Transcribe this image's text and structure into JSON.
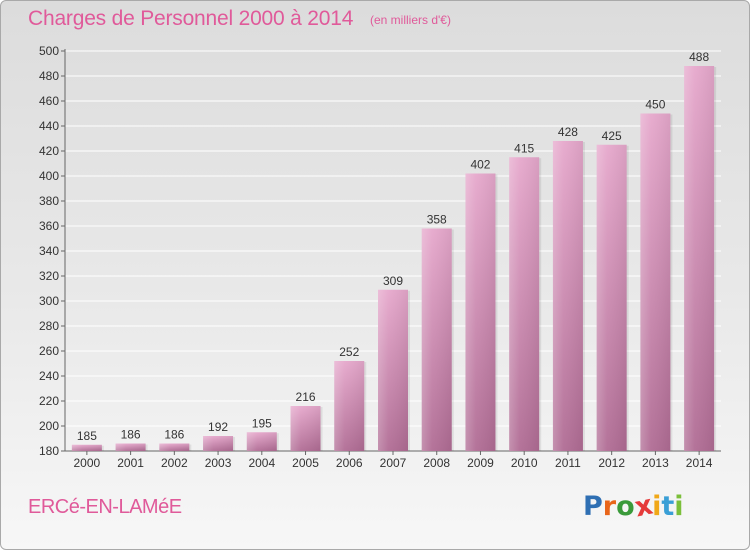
{
  "header": {
    "title": "Charges de Personnel 2000 à 2014",
    "subtitle": "(en milliers d'€)"
  },
  "footer": {
    "commune": "ERCé-EN-LAMéE",
    "logo": {
      "text": "Proxiti",
      "letter_colors": [
        "#2f6fb3",
        "#e8651a",
        "#3a9a3a",
        "#e53a3a",
        "#f0a818",
        "#3a9fd6",
        "#7bbf3a"
      ]
    }
  },
  "chart_data": {
    "type": "bar",
    "title": "Charges de Personnel 2000 à 2014",
    "subtitle": "(en milliers d'€)",
    "categories": [
      "2000",
      "2001",
      "2002",
      "2003",
      "2004",
      "2005",
      "2006",
      "2007",
      "2008",
      "2009",
      "2010",
      "2011",
      "2012",
      "2013",
      "2014"
    ],
    "values": [
      185,
      186,
      186,
      192,
      195,
      216,
      252,
      309,
      358,
      402,
      415,
      428,
      425,
      450,
      488
    ],
    "ylim": [
      180,
      500
    ],
    "yticks": [
      180,
      200,
      220,
      240,
      260,
      280,
      300,
      320,
      340,
      360,
      380,
      400,
      420,
      440,
      460,
      480,
      500
    ],
    "grid": true,
    "bar_color": "#d58fb6"
  }
}
